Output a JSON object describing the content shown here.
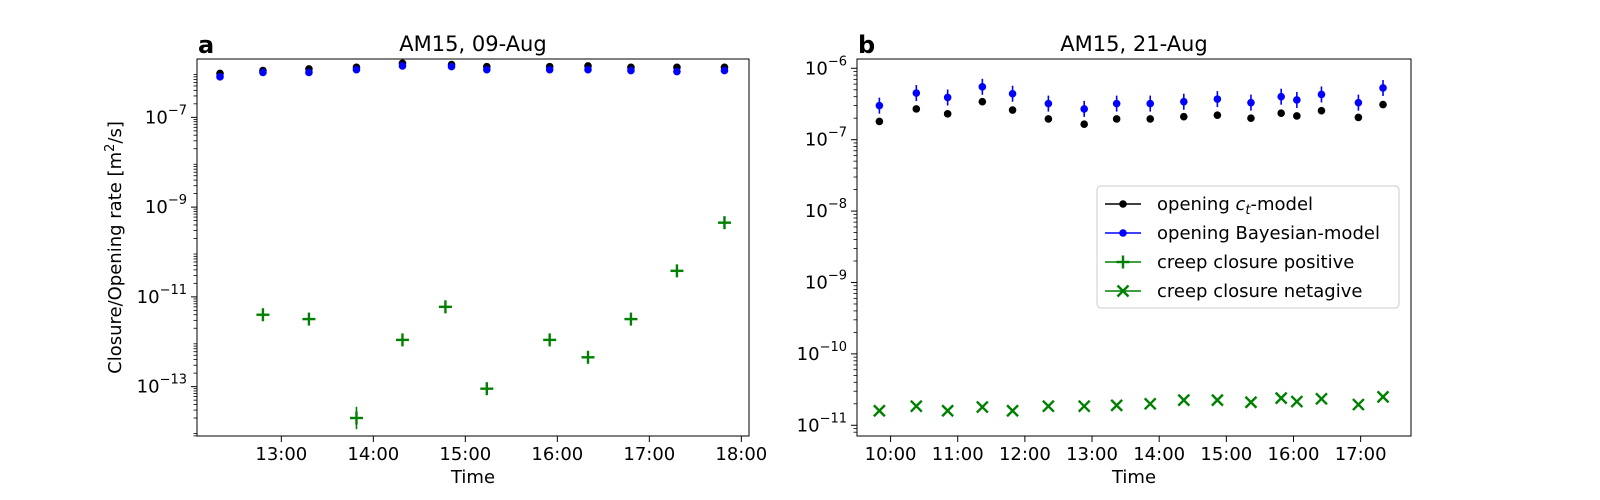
{
  "chart_data": [
    {
      "panel_label": "a",
      "type": "scatter",
      "title": "AM15, 09-Aug",
      "xlabel": "Time",
      "ylabel_parts": [
        "Closure/Opening rate [m",
        "2",
        "/s]"
      ],
      "yscale": "log",
      "xlim": [
        "12:05",
        "18:05"
      ],
      "ylim_log10": [
        -14.1,
        -5.7
      ],
      "xticks": [
        "13:00",
        "14:00",
        "15:00",
        "16:00",
        "17:00",
        "18:00"
      ],
      "yticks_log10": [
        -7,
        -9,
        -11,
        -13
      ],
      "series": [
        {
          "kind": "opening-ct",
          "color": "#000000",
          "marker": "dot",
          "points": [
            {
              "x": "12:20",
              "y": 9.5e-07
            },
            {
              "x": "12:48",
              "y": 1.1e-06
            },
            {
              "x": "13:18",
              "y": 1.2e-06
            },
            {
              "x": "13:49",
              "y": 1.3e-06
            },
            {
              "x": "14:19",
              "y": 1.6e-06
            },
            {
              "x": "14:51",
              "y": 1.5e-06
            },
            {
              "x": "15:14",
              "y": 1.35e-06
            },
            {
              "x": "15:55",
              "y": 1.35e-06
            },
            {
              "x": "16:20",
              "y": 1.4e-06
            },
            {
              "x": "16:48",
              "y": 1.3e-06
            },
            {
              "x": "17:18",
              "y": 1.3e-06
            },
            {
              "x": "17:49",
              "y": 1.3e-06
            }
          ]
        },
        {
          "kind": "opening-bayes",
          "color": "#0000ff",
          "marker": "dot",
          "points": [
            {
              "x": "12:20",
              "y": 8e-07
            },
            {
              "x": "12:48",
              "y": 1e-06
            },
            {
              "x": "13:18",
              "y": 1e-06
            },
            {
              "x": "13:49",
              "y": 1.15e-06
            },
            {
              "x": "14:19",
              "y": 1.4e-06
            },
            {
              "x": "14:51",
              "y": 1.35e-06
            },
            {
              "x": "15:14",
              "y": 1.15e-06
            },
            {
              "x": "15:55",
              "y": 1.15e-06
            },
            {
              "x": "16:20",
              "y": 1.15e-06
            },
            {
              "x": "16:48",
              "y": 1.1e-06
            },
            {
              "x": "17:18",
              "y": 1.05e-06
            },
            {
              "x": "17:49",
              "y": 1.1e-06
            }
          ]
        },
        {
          "kind": "creep-positive",
          "color": "#008000",
          "marker": "plus",
          "points": [
            {
              "x": "12:48",
              "y": 4e-12
            },
            {
              "x": "13:18",
              "y": 3.2e-12
            },
            {
              "x": "13:49",
              "y": 2e-14,
              "err_log10": 0.25
            },
            {
              "x": "14:19",
              "y": 1.1e-12
            },
            {
              "x": "14:47",
              "y": 6e-12
            },
            {
              "x": "15:14",
              "y": 9e-14,
              "err_log10": 0.12
            },
            {
              "x": "15:55",
              "y": 1.1e-12
            },
            {
              "x": "16:20",
              "y": 4.5e-13
            },
            {
              "x": "16:48",
              "y": 3.2e-12
            },
            {
              "x": "17:18",
              "y": 3.8e-11
            },
            {
              "x": "17:49",
              "y": 4.5e-10
            }
          ]
        }
      ]
    },
    {
      "panel_label": "b",
      "type": "scatter",
      "title": "AM15, 21-Aug",
      "xlabel": "Time",
      "yscale": "log",
      "xlim": [
        "09:30",
        "17:45"
      ],
      "ylim_log10": [
        -11.15,
        -5.87
      ],
      "xticks": [
        "10:00",
        "11:00",
        "12:00",
        "13:00",
        "14:00",
        "15:00",
        "16:00",
        "17:00"
      ],
      "yticks_log10": [
        -6,
        -7,
        -8,
        -9,
        -10,
        -11
      ],
      "series": [
        {
          "kind": "opening-ct",
          "color": "#000000",
          "marker": "dot",
          "points": [
            {
              "x": "09:50",
              "y": 1.8e-07
            },
            {
              "x": "10:23",
              "y": 2.7e-07
            },
            {
              "x": "10:51",
              "y": 2.3e-07
            },
            {
              "x": "11:22",
              "y": 3.4e-07
            },
            {
              "x": "11:49",
              "y": 2.6e-07
            },
            {
              "x": "12:21",
              "y": 1.95e-07
            },
            {
              "x": "12:53",
              "y": 1.65e-07
            },
            {
              "x": "13:22",
              "y": 1.95e-07
            },
            {
              "x": "13:52",
              "y": 1.95e-07
            },
            {
              "x": "14:22",
              "y": 2.1e-07
            },
            {
              "x": "14:52",
              "y": 2.2e-07
            },
            {
              "x": "15:22",
              "y": 2e-07
            },
            {
              "x": "15:49",
              "y": 2.35e-07
            },
            {
              "x": "16:03",
              "y": 2.15e-07
            },
            {
              "x": "16:25",
              "y": 2.55e-07
            },
            {
              "x": "16:58",
              "y": 2.05e-07
            },
            {
              "x": "17:20",
              "y": 3.1e-07
            }
          ]
        },
        {
          "kind": "opening-bayes",
          "color": "#0000ff",
          "marker": "dot",
          "points": [
            {
              "x": "09:50",
              "y": 3e-07
            },
            {
              "x": "10:23",
              "y": 4.5e-07
            },
            {
              "x": "10:51",
              "y": 3.9e-07
            },
            {
              "x": "11:22",
              "y": 5.5e-07
            },
            {
              "x": "11:49",
              "y": 4.4e-07
            },
            {
              "x": "12:21",
              "y": 3.2e-07
            },
            {
              "x": "12:53",
              "y": 2.7e-07
            },
            {
              "x": "13:22",
              "y": 3.2e-07
            },
            {
              "x": "13:52",
              "y": 3.2e-07
            },
            {
              "x": "14:22",
              "y": 3.4e-07
            },
            {
              "x": "14:52",
              "y": 3.7e-07
            },
            {
              "x": "15:22",
              "y": 3.3e-07
            },
            {
              "x": "15:49",
              "y": 4e-07
            },
            {
              "x": "16:03",
              "y": 3.6e-07
            },
            {
              "x": "16:25",
              "y": 4.3e-07
            },
            {
              "x": "16:58",
              "y": 3.3e-07
            },
            {
              "x": "17:20",
              "y": 5.3e-07
            }
          ]
        },
        {
          "kind": "creep-negative",
          "color": "#008000",
          "marker": "x",
          "points": [
            {
              "x": "09:50",
              "y": 1.6e-11
            },
            {
              "x": "10:23",
              "y": 1.85e-11
            },
            {
              "x": "10:51",
              "y": 1.6e-11
            },
            {
              "x": "11:22",
              "y": 1.8e-11
            },
            {
              "x": "11:49",
              "y": 1.6e-11
            },
            {
              "x": "12:21",
              "y": 1.85e-11
            },
            {
              "x": "12:53",
              "y": 1.85e-11
            },
            {
              "x": "13:22",
              "y": 1.9e-11
            },
            {
              "x": "13:52",
              "y": 2e-11
            },
            {
              "x": "14:22",
              "y": 2.25e-11
            },
            {
              "x": "14:52",
              "y": 2.25e-11
            },
            {
              "x": "15:22",
              "y": 2.1e-11
            },
            {
              "x": "15:49",
              "y": 2.4e-11
            },
            {
              "x": "16:03",
              "y": 2.15e-11
            },
            {
              "x": "16:25",
              "y": 2.35e-11
            },
            {
              "x": "16:58",
              "y": 1.95e-11
            },
            {
              "x": "17:20",
              "y": 2.5e-11
            }
          ]
        }
      ],
      "legend": {
        "placement": "center-right",
        "entries": [
          {
            "label_pre": "opening ",
            "label_italic": "c",
            "label_sub": "t",
            "label_post": "-model",
            "color": "#000000",
            "marker": "dot"
          },
          {
            "label": "opening Bayesian-model",
            "color": "#0000ff",
            "marker": "dot"
          },
          {
            "label": "creep closure positive",
            "color": "#008000",
            "marker": "plus"
          },
          {
            "label": "creep closure netagive",
            "color": "#008000",
            "marker": "x"
          }
        ]
      }
    }
  ]
}
